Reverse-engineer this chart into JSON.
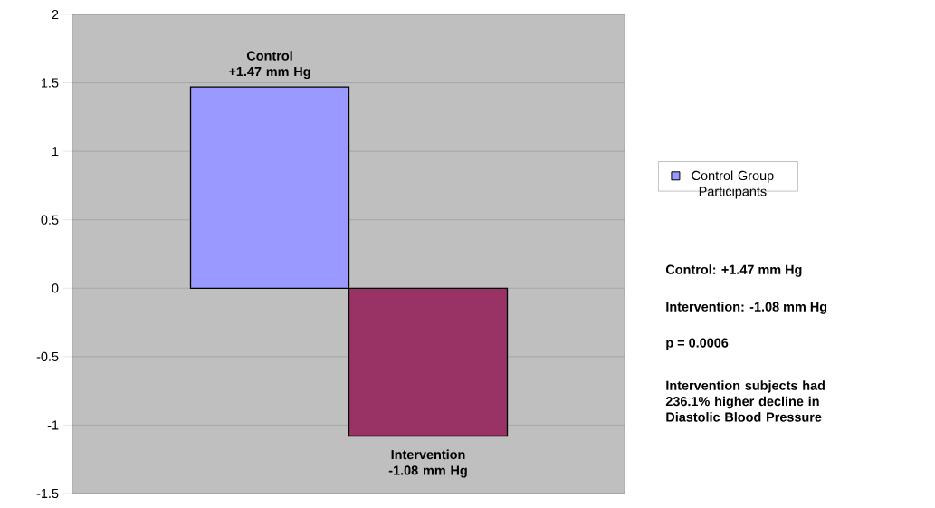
{
  "chart_data": {
    "type": "bar",
    "categories": [
      null,
      null
    ],
    "series": [
      {
        "name": "Control Group Participants",
        "color": "#9999ff",
        "colors": [
          "#9999ff",
          "#993366"
        ],
        "values": [
          1.47,
          -1.08
        ]
      }
    ],
    "ylim": [
      -1.5,
      2
    ],
    "yticks": [
      -1.5,
      -1,
      -0.5,
      0,
      0.5,
      1,
      1.5,
      2
    ],
    "grid": "y",
    "legend": "right",
    "annotations": [
      {
        "text": "Control +1.47 mm Hg",
        "y": 1.47
      },
      {
        "text": "Intervention -1.08 mm Hg",
        "y": -1.08
      },
      "Control: +1.47 mm Hg",
      "Intervention: -1.08 mm Hg",
      "p = 0.0006",
      "Intervention subjects had 236.1% higher decline in Diastolic Blood Pressure"
    ]
  }
}
